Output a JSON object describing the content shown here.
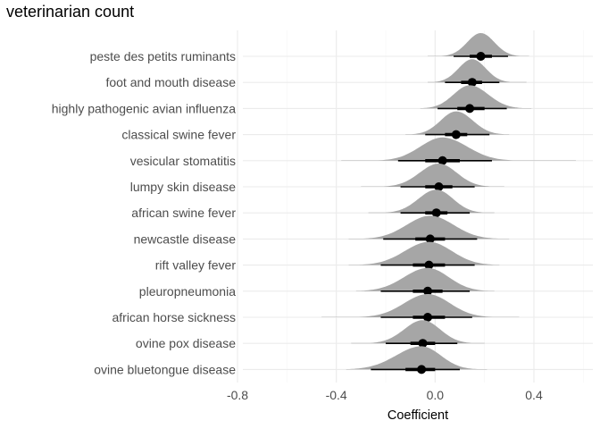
{
  "chart_data": {
    "type": "scatter",
    "title": "veterinarian count",
    "xlabel": "Coefficient",
    "ylabel": "",
    "xlim": [
      -0.8,
      0.64
    ],
    "x_ticks": [
      -0.8,
      -0.4,
      0.0,
      0.4
    ],
    "x_tick_labels": [
      "-0.8",
      "-0.4",
      "0.0",
      "0.4"
    ],
    "grid": true,
    "legend": "none",
    "colors": {
      "density": "#a6a6a6",
      "point": "#000000",
      "grid_major": "#ebebeb",
      "grid_minor": "#f5f5f5"
    },
    "categories": [
      "peste des petits ruminants",
      "foot and mouth disease",
      "highly pathogenic avian influenza",
      "classical swine fever",
      "vesicular stomatitis",
      "lumpy skin disease",
      "african swine fever",
      "newcastle disease",
      "rift valley fever",
      "pleuropneumonia",
      "african horse sickness",
      "ovine pox disease",
      "ovine bluetongue disease"
    ],
    "estimates": [
      {
        "label": "peste des petits ruminants",
        "median": 0.185,
        "inner": [
          0.14,
          0.23
        ],
        "outer": [
          0.075,
          0.295
        ],
        "range": [
          -0.03,
          0.38
        ]
      },
      {
        "label": "foot and mouth disease",
        "median": 0.15,
        "inner": [
          0.105,
          0.19
        ],
        "outer": [
          0.04,
          0.26
        ],
        "range": [
          -0.03,
          0.37
        ]
      },
      {
        "label": "highly pathogenic avian influenza",
        "median": 0.14,
        "inner": [
          0.09,
          0.2
        ],
        "outer": [
          0.01,
          0.29
        ],
        "range": [
          -0.06,
          0.39
        ]
      },
      {
        "label": "classical swine fever",
        "median": 0.085,
        "inner": [
          0.04,
          0.13
        ],
        "outer": [
          -0.04,
          0.22
        ],
        "range": [
          -0.12,
          0.3
        ]
      },
      {
        "label": "vesicular stomatitis",
        "median": 0.03,
        "inner": [
          -0.04,
          0.1
        ],
        "outer": [
          -0.15,
          0.23
        ],
        "range": [
          -0.38,
          0.57
        ]
      },
      {
        "label": "lumpy skin disease",
        "median": 0.015,
        "inner": [
          -0.04,
          0.07
        ],
        "outer": [
          -0.14,
          0.16
        ],
        "range": [
          -0.3,
          0.28
        ]
      },
      {
        "label": "african swine fever",
        "median": 0.005,
        "inner": [
          -0.04,
          0.05
        ],
        "outer": [
          -0.14,
          0.14
        ],
        "range": [
          -0.27,
          0.24
        ]
      },
      {
        "label": "newcastle disease",
        "median": -0.02,
        "inner": [
          -0.08,
          0.04
        ],
        "outer": [
          -0.21,
          0.17
        ],
        "range": [
          -0.35,
          0.3
        ]
      },
      {
        "label": "rift valley fever",
        "median": -0.025,
        "inner": [
          -0.09,
          0.04
        ],
        "outer": [
          -0.22,
          0.16
        ],
        "range": [
          -0.35,
          0.26
        ]
      },
      {
        "label": "pleuropneumonia",
        "median": -0.03,
        "inner": [
          -0.09,
          0.03
        ],
        "outer": [
          -0.22,
          0.14
        ],
        "range": [
          -0.32,
          0.24
        ]
      },
      {
        "label": "african horse sickness",
        "median": -0.03,
        "inner": [
          -0.09,
          0.04
        ],
        "outer": [
          -0.22,
          0.15
        ],
        "range": [
          -0.46,
          0.34
        ]
      },
      {
        "label": "ovine pox disease",
        "median": -0.05,
        "inner": [
          -0.1,
          0.0
        ],
        "outer": [
          -0.2,
          0.09
        ],
        "range": [
          -0.34,
          0.2
        ]
      },
      {
        "label": "ovine bluetongue disease",
        "median": -0.055,
        "inner": [
          -0.12,
          0.0
        ],
        "outer": [
          -0.26,
          0.1
        ],
        "range": [
          -0.36,
          0.21
        ]
      }
    ]
  }
}
